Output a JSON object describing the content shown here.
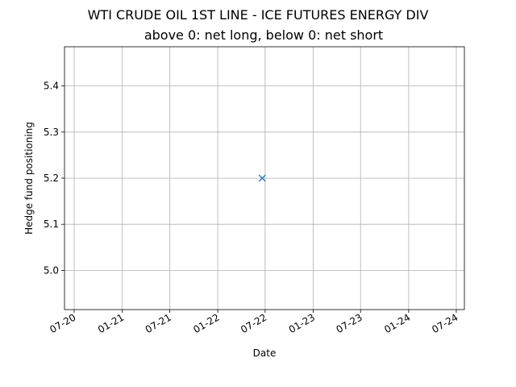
{
  "chart_data": {
    "type": "scatter",
    "title": "WTI CRUDE OIL 1ST LINE - ICE FUTURES ENERGY DIV",
    "subtitle": "above 0: net long, below 0: net short",
    "xlabel": "Date",
    "ylabel": "Hedge fund positioning",
    "xlim": [
      "2020-05-25",
      "2024-08-01"
    ],
    "ylim": [
      4.915,
      5.485
    ],
    "x_ticks": [
      {
        "date": "2020-07-01",
        "label": "07-20"
      },
      {
        "date": "2021-01-01",
        "label": "01-21"
      },
      {
        "date": "2021-07-01",
        "label": "07-21"
      },
      {
        "date": "2022-01-01",
        "label": "01-22"
      },
      {
        "date": "2022-07-01",
        "label": "07-22"
      },
      {
        "date": "2023-01-01",
        "label": "01-23"
      },
      {
        "date": "2023-07-01",
        "label": "07-23"
      },
      {
        "date": "2024-01-01",
        "label": "01-24"
      },
      {
        "date": "2024-07-01",
        "label": "07-24"
      }
    ],
    "y_ticks": [
      {
        "value": 5.0,
        "label": "5.0"
      },
      {
        "value": 5.1,
        "label": "5.1"
      },
      {
        "value": 5.2,
        "label": "5.2"
      },
      {
        "value": 5.3,
        "label": "5.3"
      },
      {
        "value": 5.4,
        "label": "5.4"
      }
    ],
    "series": [
      {
        "marker": "x",
        "color": "#1f77b4",
        "points": [
          {
            "x": "2022-06-20",
            "y": 5.2
          }
        ]
      }
    ],
    "grid": true,
    "legend": "none"
  }
}
